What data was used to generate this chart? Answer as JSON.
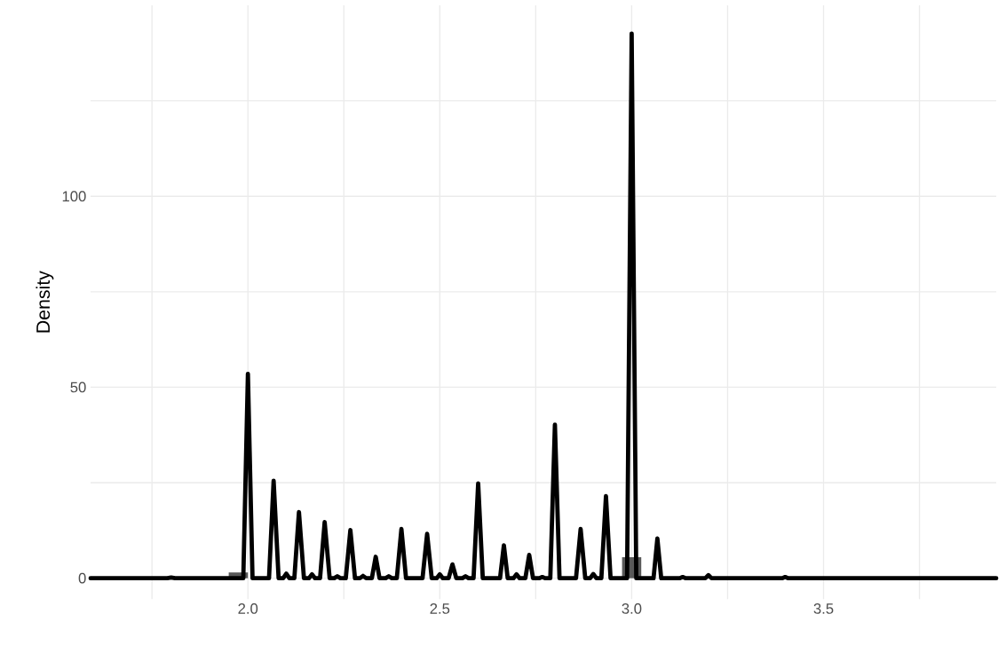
{
  "chart_data": {
    "type": "line",
    "ylabel": "Density",
    "xlim": [
      1.59,
      3.95
    ],
    "ylim": [
      -5.5,
      150
    ],
    "xticks": [
      {
        "value": 1.75,
        "label": null
      },
      {
        "value": 2,
        "label": "2.0"
      },
      {
        "value": 2.25,
        "label": null
      },
      {
        "value": 2.5,
        "label": "2.5"
      },
      {
        "value": 2.75,
        "label": null
      },
      {
        "value": 3,
        "label": "3.0"
      },
      {
        "value": 3.25,
        "label": null
      },
      {
        "value": 3.5,
        "label": "3.5"
      },
      {
        "value": 3.75,
        "label": null
      }
    ],
    "yticks": [
      0,
      {
        "value": 25,
        "label": null
      },
      50,
      {
        "value": 75,
        "label": null
      },
      100,
      {
        "value": 125,
        "label": null
      }
    ],
    "grid": true,
    "line_style": "solid",
    "marker": "none",
    "series": [
      {
        "type": "histogram",
        "color": "#595959",
        "bins": [
          1.95,
          2.0,
          2.975,
          3.025
        ],
        "values": [
          1.5,
          0,
          5.5
        ]
      },
      {
        "color": "#000000",
        "x": [
          1.59,
          1.79,
          1.8,
          1.81,
          1.95,
          1.988,
          2.0,
          2.012,
          2.055,
          2.067,
          2.08,
          2.092,
          2.1,
          2.108,
          2.121,
          2.133,
          2.146,
          2.159,
          2.167,
          2.175,
          2.188,
          2.2,
          2.213,
          2.225,
          2.233,
          2.241,
          2.255,
          2.267,
          2.279,
          2.292,
          2.3,
          2.308,
          2.323,
          2.333,
          2.343,
          2.359,
          2.367,
          2.375,
          2.388,
          2.4,
          2.412,
          2.455,
          2.467,
          2.479,
          2.492,
          2.5,
          2.508,
          2.523,
          2.533,
          2.543,
          2.559,
          2.567,
          2.575,
          2.588,
          2.6,
          2.612,
          2.657,
          2.667,
          2.677,
          2.692,
          2.7,
          2.708,
          2.723,
          2.733,
          2.743,
          2.759,
          2.767,
          2.775,
          2.788,
          2.8,
          2.812,
          2.855,
          2.867,
          2.879,
          2.892,
          2.9,
          2.908,
          2.921,
          2.933,
          2.945,
          2.988,
          3.0,
          3.012,
          3.057,
          3.067,
          3.077,
          3.125,
          3.133,
          3.141,
          3.192,
          3.2,
          3.208,
          3.392,
          3.4,
          3.408,
          3.95
        ],
        "values": [
          0,
          0,
          0.2,
          0,
          0,
          0,
          53.5,
          0,
          0,
          25.5,
          0,
          0,
          1.2,
          0,
          0,
          17.3,
          0,
          0,
          1,
          0,
          0,
          14.7,
          0,
          0,
          0.5,
          0,
          0,
          12.6,
          0,
          0,
          0.6,
          0,
          0,
          5.6,
          0,
          0,
          0.5,
          0,
          0,
          12.9,
          0,
          0,
          11.6,
          0,
          0,
          1,
          0,
          0,
          3.6,
          0,
          0,
          0.5,
          0,
          0,
          24.8,
          0,
          0,
          8.6,
          0,
          0,
          1,
          0,
          0,
          6.1,
          0,
          0,
          0.3,
          0,
          0,
          40.2,
          0,
          0,
          12.9,
          0,
          0,
          1.1,
          0,
          0,
          21.5,
          0,
          0,
          142.6,
          0,
          0,
          10.4,
          0,
          0,
          0.3,
          0,
          0,
          0.8,
          0,
          0,
          0.3,
          0,
          0
        ]
      }
    ]
  }
}
